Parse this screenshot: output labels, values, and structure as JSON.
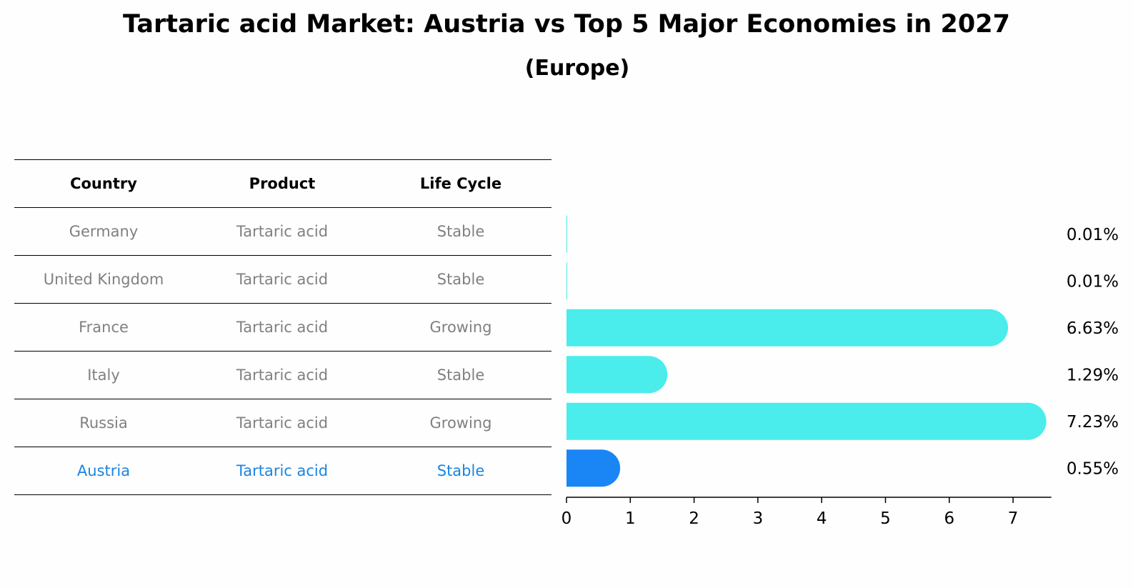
{
  "title": "Tartaric acid Market: Austria vs Top 5 Major Economies in 2027",
  "subtitle": "(Europe)",
  "table": {
    "headers": [
      "Country",
      "Product",
      "Life Cycle"
    ],
    "rows": [
      [
        "Germany",
        "Tartaric acid",
        "Stable"
      ],
      [
        "United Kingdom",
        "Tartaric acid",
        "Stable"
      ],
      [
        "France",
        "Tartaric acid",
        "Growing"
      ],
      [
        "Italy",
        "Tartaric acid",
        "Stable"
      ],
      [
        "Russia",
        "Tartaric acid",
        "Growing"
      ],
      [
        "Austria",
        "Tartaric acid",
        "Stable"
      ]
    ],
    "highlight_row": 5
  },
  "colors": {
    "bar": "#4aecec",
    "highlight_bar": "#1a85f5",
    "highlight_text": "#1a85e0",
    "muted_text": "#808080"
  },
  "chart_data": {
    "type": "bar",
    "orientation": "horizontal",
    "categories": [
      "Germany",
      "United Kingdom",
      "France",
      "Italy",
      "Russia",
      "Austria"
    ],
    "values": [
      0.01,
      0.01,
      6.63,
      1.29,
      7.23,
      0.55
    ],
    "value_labels": [
      "0.01%",
      "0.01%",
      "6.63%",
      "1.29%",
      "7.23%",
      "0.55%"
    ],
    "highlight": "Austria",
    "xlim": [
      0,
      7.6
    ],
    "xticks": [
      0,
      1,
      2,
      3,
      4,
      5,
      6,
      7
    ],
    "xlabel": "",
    "ylabel": ""
  }
}
